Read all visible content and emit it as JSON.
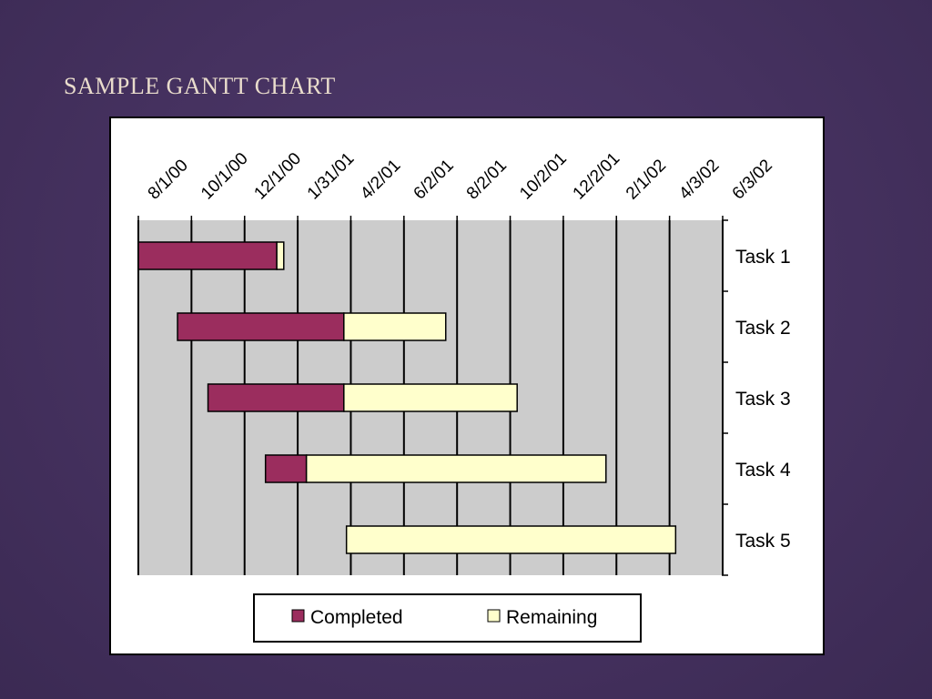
{
  "slide": {
    "title": "SAMPLE GANTT CHART"
  },
  "colors": {
    "completed": "#9b2d5e",
    "remaining": "#ffffcc",
    "plot_bg": "#cccccc",
    "background": "#45315f"
  },
  "chart_data": {
    "type": "bar",
    "orientation": "horizontal-stacked",
    "x_ticks": [
      "8/1/00",
      "10/1/00",
      "12/1/00",
      "1/31/01",
      "4/2/01",
      "6/2/01",
      "8/2/01",
      "10/2/01",
      "12/2/01",
      "2/1/02",
      "4/3/02",
      "6/3/02"
    ],
    "xlim": [
      "2000-08-01",
      "2002-06-03"
    ],
    "categories": [
      "Task 1",
      "Task 2",
      "Task 3",
      "Task 4",
      "Task 5"
    ],
    "tasks": [
      {
        "name": "Task 1",
        "start": "2000-08-01",
        "completed_end": "2001-01-07",
        "end": "2001-01-15"
      },
      {
        "name": "Task 2",
        "start": "2000-09-15",
        "completed_end": "2001-03-25",
        "end": "2001-07-20"
      },
      {
        "name": "Task 3",
        "start": "2000-10-20",
        "completed_end": "2001-03-25",
        "end": "2001-10-10"
      },
      {
        "name": "Task 4",
        "start": "2000-12-25",
        "completed_end": "2001-02-10",
        "end": "2002-01-20"
      },
      {
        "name": "Task 5",
        "start": "2001-03-28",
        "completed_end": "2001-03-28",
        "end": "2002-04-10"
      }
    ],
    "series": [
      {
        "name": "Completed"
      },
      {
        "name": "Remaining"
      }
    ],
    "legend_position": "bottom",
    "grid": true
  }
}
